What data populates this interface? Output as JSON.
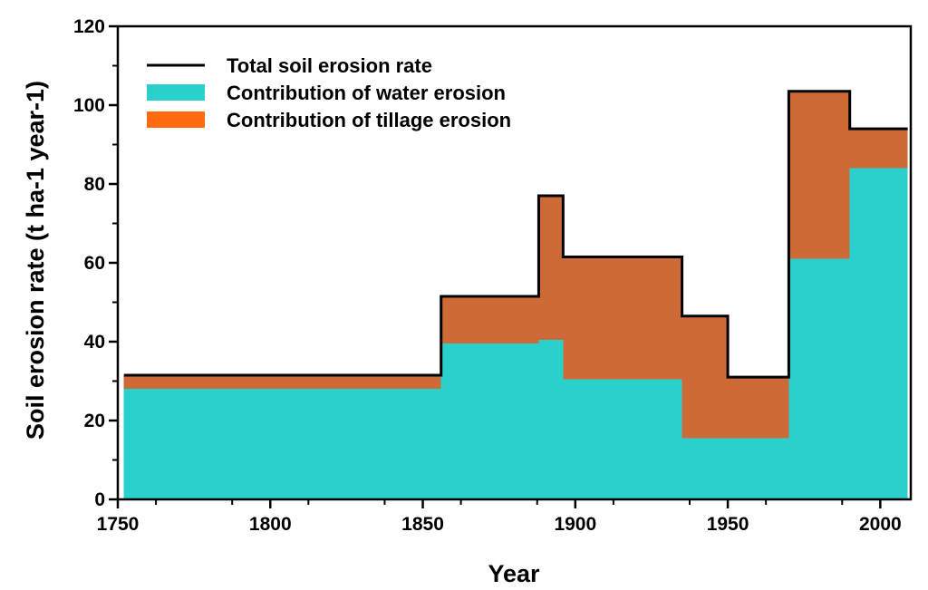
{
  "chart_data": {
    "type": "area",
    "title": "",
    "xlabel": "Year",
    "ylabel": "Soil erosion rate (t ha-1 year-1)",
    "xlim": [
      1750,
      2010
    ],
    "ylim": [
      0,
      120
    ],
    "xticks": [
      1750,
      1800,
      1850,
      1900,
      1950,
      2000
    ],
    "yticks": [
      0,
      20,
      40,
      60,
      80,
      100,
      120
    ],
    "x_minor_step": 12.5,
    "y_minor_step": 10,
    "grid": false,
    "legend_position": "top-left",
    "step_edges": [
      1752,
      1856,
      1888,
      1896,
      1935,
      1950,
      1970,
      1990,
      2009
    ],
    "series": [
      {
        "name": "Total soil erosion rate",
        "kind": "line",
        "color": "#000000",
        "values": [
          31.5,
          51.5,
          77,
          61.5,
          46.5,
          31,
          103.5,
          94
        ]
      },
      {
        "name": "Contribution of water erosion",
        "kind": "area",
        "color": "#2ad1cc",
        "values": [
          28,
          39.5,
          40.5,
          30.5,
          15.5,
          15.5,
          61,
          84
        ]
      },
      {
        "name": "Contribution of tillage erosion",
        "kind": "area",
        "color": "#cd6a38",
        "legend_color": "#ff6a10",
        "values": [
          3.5,
          12,
          36.5,
          31,
          31,
          15.5,
          42.5,
          10
        ]
      }
    ]
  }
}
